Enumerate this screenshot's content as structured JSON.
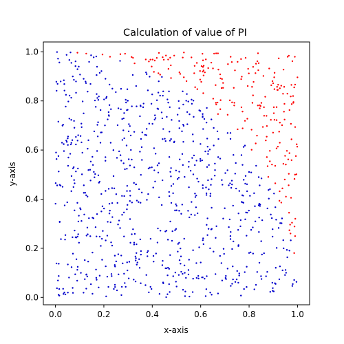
{
  "chart_data": {
    "type": "scatter",
    "title": "Calculation of value of PI",
    "xlabel": "x-axis",
    "ylabel": "y-axis",
    "xlim": [
      -0.05,
      1.05
    ],
    "ylim": [
      -0.03,
      1.04
    ],
    "xticks": [
      0.0,
      0.2,
      0.4,
      0.6,
      0.8,
      1.0
    ],
    "yticks": [
      0.0,
      0.2,
      0.4,
      0.6,
      0.8,
      1.0
    ],
    "xtick_labels": [
      "0.0",
      "0.2",
      "0.4",
      "0.6",
      "0.8",
      "1.0"
    ],
    "ytick_labels": [
      "0.0",
      "0.2",
      "0.4",
      "0.6",
      "0.8",
      "1.0"
    ],
    "grid": false,
    "legend": "none",
    "inside_color": "#0000cc",
    "outside_color": "#ff0000",
    "point_count": 1000,
    "series": [
      {
        "color": "#0000cc",
        "rule": "x^2 + y^2 <= 1"
      },
      {
        "color": "#ff0000",
        "rule": "x^2 + y^2 > 1"
      }
    ]
  }
}
